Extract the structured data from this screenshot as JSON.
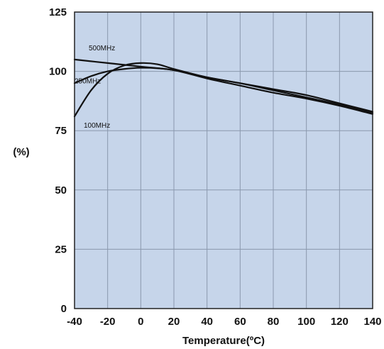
{
  "chart_data": {
    "type": "line",
    "title": "",
    "xlabel": "Temperature(ºC)",
    "ylabel": "(%)",
    "xlim": [
      -40,
      140
    ],
    "ylim": [
      0,
      125
    ],
    "xticks": [
      -40,
      -20,
      0,
      20,
      40,
      60,
      80,
      100,
      120,
      140
    ],
    "yticks": [
      0,
      25,
      50,
      75,
      100,
      125
    ],
    "grid": true,
    "background_color": "#c6d5ea",
    "grid_color": "#8a98ad",
    "line_color": "#111111",
    "legend": "none",
    "series": [
      {
        "name": "500MHz",
        "x": [
          -40,
          -20,
          0,
          20,
          40,
          60,
          80,
          100,
          120,
          140
        ],
        "y": [
          105,
          103.5,
          102,
          100.5,
          97,
          94,
          91,
          88.5,
          85.5,
          82
        ]
      },
      {
        "name": "250MHz",
        "x": [
          -40,
          -30,
          -20,
          -10,
          0,
          10,
          20,
          40,
          60,
          80,
          100,
          120,
          140
        ],
        "y": [
          95,
          98,
          100,
          101,
          101.5,
          101.3,
          100.5,
          97.5,
          95,
          92.5,
          90,
          86.5,
          83
        ]
      },
      {
        "name": "100MHz",
        "x": [
          -40,
          -30,
          -20,
          -10,
          0,
          10,
          20,
          40,
          60,
          80,
          100,
          120,
          140
        ],
        "y": [
          81,
          92,
          99,
          102.5,
          103.5,
          103,
          101,
          97.5,
          95,
          92,
          89,
          86,
          82.5
        ]
      }
    ]
  }
}
